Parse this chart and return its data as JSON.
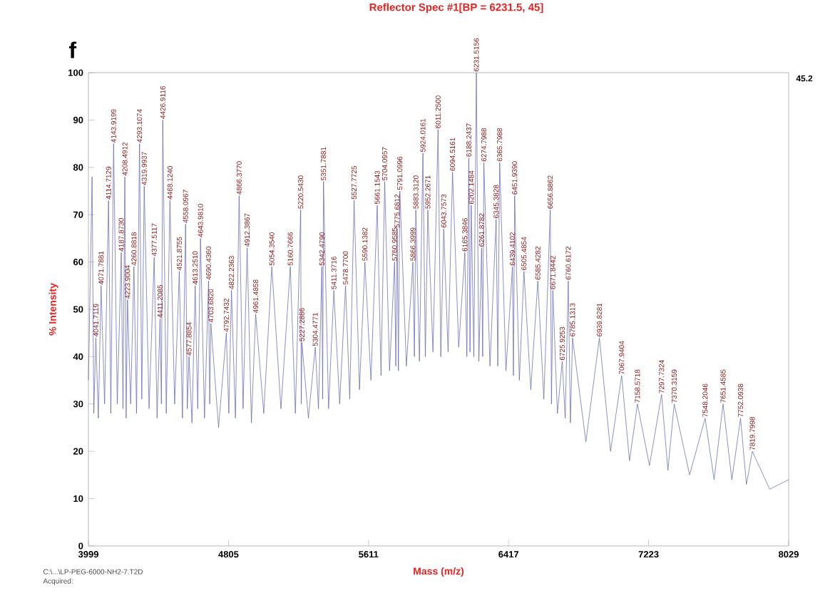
{
  "chart_data": {
    "type": "line",
    "title": "Reflector Spec #1[BP = 6231.5, 45]",
    "xlabel": "Mass (m/z)",
    "ylabel": "% Intensity",
    "color": "#5a5fb0",
    "xlim": [
      3999,
      8029
    ],
    "xticks": [
      3999,
      4805,
      5611,
      6417,
      7223,
      8029
    ],
    "ylim": [
      0,
      100
    ],
    "yticks": [
      0,
      10,
      20,
      30,
      40,
      50,
      60,
      70,
      80,
      90,
      100
    ],
    "x": [
      3999,
      4020,
      4030,
      4041.7,
      4056,
      4071.8,
      4092,
      4114.7,
      4128,
      4143.9,
      4165,
      4187.9,
      4198,
      4208.5,
      4216,
      4223.9,
      4242,
      4260.9,
      4276,
      4293.1,
      4306,
      4320.0,
      4348,
      4377.5,
      4394,
      4411.2,
      4419,
      4426.9,
      4447,
      4468.1,
      4495,
      4521.9,
      4540,
      4558.1,
      4568,
      4577.9,
      4595,
      4613.3,
      4628,
      4644.0,
      4667,
      4690.4,
      4697,
      4703.7,
      4748,
      4792.7,
      4807,
      4822.2,
      4845,
      4866.4,
      4889,
      4912.4,
      4937,
      4961.5,
      5008,
      5054.4,
      5107,
      5160.8,
      5190,
      5220.5,
      5224,
      5227.3,
      5265,
      5304.5,
      5323,
      5342.5,
      5347,
      5351.8,
      5381,
      5411.4,
      5445,
      5478.8,
      5503,
      5527.8,
      5559,
      5590.1,
      5625,
      5661.2,
      5683,
      5704.1,
      5732,
      5761.0,
      5768,
      5775.7,
      5783,
      5791.1,
      5829,
      5866.4,
      5875,
      5883.3,
      5904,
      5924.0,
      5938,
      5952.3,
      5982,
      6011.3,
      6027,
      6043.8,
      6069,
      6094.5,
      6130,
      6165.4,
      6177,
      6188.2,
      6195,
      6202.1,
      6217,
      6231.5,
      6246,
      6261.9,
      6268,
      6274.8,
      6310,
      6345.4,
      6355,
      6365.8,
      6402,
      6439.4,
      6445,
      6451.9,
      6479,
      6505.5,
      6545,
      6585.4,
      6620,
      6656.9,
      6664,
      6671.8,
      6698,
      6725.9,
      6743,
      6760.6,
      6773,
      6785.1,
      6862,
      6939.8,
      7004,
      7067.9,
      7113,
      7158.6,
      7228,
      7297.7,
      7334,
      7370.3,
      7459,
      7548.2,
      7600,
      7651.5,
      7702,
      7752.1,
      7786,
      7819.8,
      7920,
      8029
    ],
    "values": [
      35,
      78,
      28,
      44,
      27,
      55,
      30,
      73,
      28,
      85,
      30,
      62,
      29,
      78,
      27,
      52,
      30,
      59,
      28,
      85,
      31,
      76,
      29,
      61,
      27,
      48,
      30,
      90,
      28,
      73,
      30,
      58,
      27,
      68,
      29,
      40,
      26,
      55,
      29,
      65,
      27,
      56,
      30,
      47,
      25,
      45,
      28,
      54,
      27,
      74,
      29,
      63,
      26,
      49,
      28,
      59,
      29,
      59,
      28,
      71,
      30,
      43,
      27,
      42,
      29,
      59,
      31,
      77,
      29,
      54,
      30,
      55,
      31,
      73,
      33,
      60,
      35,
      72,
      36,
      77,
      37,
      60,
      38,
      67,
      37,
      75,
      38,
      60,
      40,
      71,
      39,
      83,
      40,
      71,
      41,
      88,
      40,
      67,
      41,
      79,
      42,
      62,
      40,
      82,
      41,
      72,
      40,
      100,
      39,
      63,
      40,
      81,
      38,
      69,
      38,
      81,
      37,
      59,
      36,
      74,
      35,
      58,
      33,
      56,
      31,
      71,
      30,
      54,
      28,
      39,
      27,
      56,
      26,
      44,
      22,
      44,
      20,
      36,
      18,
      30,
      17,
      32,
      16,
      30,
      15,
      27,
      14,
      30,
      14,
      27,
      13,
      20,
      12,
      14
    ],
    "annotations": [
      {
        "text": "4041.7119",
        "x": 4041.7119,
        "y": 44
      },
      {
        "text": "4071.7881",
        "x": 4071.7881,
        "y": 55
      },
      {
        "text": "4114.7129",
        "x": 4114.7129,
        "y": 73
      },
      {
        "text": "4143.9199",
        "x": 4143.9199,
        "y": 85
      },
      {
        "text": "4187.8730",
        "x": 4187.873,
        "y": 62
      },
      {
        "text": "4208.4912",
        "x": 4208.4912,
        "y": 78
      },
      {
        "text": "4223.9004",
        "x": 4223.9004,
        "y": 52
      },
      {
        "text": "4260.8818",
        "x": 4260.8818,
        "y": 59
      },
      {
        "text": "4293.1074",
        "x": 4293.1074,
        "y": 85
      },
      {
        "text": "4319.9937",
        "x": 4319.9937,
        "y": 76
      },
      {
        "text": "4377.5117",
        "x": 4377.5117,
        "y": 61
      },
      {
        "text": "4411.2085",
        "x": 4411.2085,
        "y": 48
      },
      {
        "text": "4426.9116",
        "x": 4426.9116,
        "y": 90
      },
      {
        "text": "4468.1240",
        "x": 4468.124,
        "y": 73
      },
      {
        "text": "4521.8755",
        "x": 4521.8755,
        "y": 58
      },
      {
        "text": "4558.0967",
        "x": 4558.0967,
        "y": 68
      },
      {
        "text": "4577.8854",
        "x": 4577.8854,
        "y": 40
      },
      {
        "text": "4613.2510",
        "x": 4613.251,
        "y": 55
      },
      {
        "text": "4643.9810",
        "x": 4643.981,
        "y": 65
      },
      {
        "text": "4690.4360",
        "x": 4690.436,
        "y": 56
      },
      {
        "text": "4703.6820",
        "x": 4703.682,
        "y": 47
      },
      {
        "text": "4792.7432",
        "x": 4792.7432,
        "y": 45
      },
      {
        "text": "4822.2363",
        "x": 4822.2363,
        "y": 54
      },
      {
        "text": "4866.3770",
        "x": 4866.377,
        "y": 74
      },
      {
        "text": "4912.3867",
        "x": 4912.3867,
        "y": 63
      },
      {
        "text": "4961.4858",
        "x": 4961.4858,
        "y": 49
      },
      {
        "text": "5054.3540",
        "x": 5054.354,
        "y": 59
      },
      {
        "text": "5160.7666",
        "x": 5160.7666,
        "y": 59
      },
      {
        "text": "5220.5430",
        "x": 5220.543,
        "y": 71
      },
      {
        "text": "5227.2886",
        "x": 5227.2886,
        "y": 43
      },
      {
        "text": "5304.4771",
        "x": 5304.4771,
        "y": 42
      },
      {
        "text": "5342.4790",
        "x": 5342.479,
        "y": 59
      },
      {
        "text": "5351.7881",
        "x": 5351.7881,
        "y": 77
      },
      {
        "text": "5411.3716",
        "x": 5411.3716,
        "y": 54
      },
      {
        "text": "5478.7700",
        "x": 5478.77,
        "y": 55
      },
      {
        "text": "5527.7725",
        "x": 5527.7725,
        "y": 73
      },
      {
        "text": "5590.1382",
        "x": 5590.1382,
        "y": 60
      },
      {
        "text": "5661.1543",
        "x": 5661.1543,
        "y": 72
      },
      {
        "text": "5704.0957",
        "x": 5704.0957,
        "y": 77
      },
      {
        "text": "5760.9585",
        "x": 5760.9585,
        "y": 60
      },
      {
        "text": "5775.6812",
        "x": 5775.6812,
        "y": 67
      },
      {
        "text": "5791.0996",
        "x": 5791.0996,
        "y": 75
      },
      {
        "text": "5866.3999",
        "x": 5866.3999,
        "y": 60
      },
      {
        "text": "5883.3120",
        "x": 5883.312,
        "y": 71
      },
      {
        "text": "5924.0161",
        "x": 5924.0161,
        "y": 83
      },
      {
        "text": "5952.2671",
        "x": 5952.2671,
        "y": 71
      },
      {
        "text": "6011.2500",
        "x": 6011.25,
        "y": 88
      },
      {
        "text": "6043.7573",
        "x": 6043.7573,
        "y": 67
      },
      {
        "text": "6094.5161",
        "x": 6094.5161,
        "y": 79
      },
      {
        "text": "6165.3846",
        "x": 6165.3846,
        "y": 62
      },
      {
        "text": "6188.2437",
        "x": 6188.2437,
        "y": 82
      },
      {
        "text": "6202.1484",
        "x": 6202.1484,
        "y": 72
      },
      {
        "text": "6231.5156",
        "x": 6231.5156,
        "y": 100
      },
      {
        "text": "6261.8782",
        "x": 6261.8782,
        "y": 63
      },
      {
        "text": "6274.7988",
        "x": 6274.7988,
        "y": 81
      },
      {
        "text": "6345.3828",
        "x": 6345.3828,
        "y": 69
      },
      {
        "text": "6365.7988",
        "x": 6365.7988,
        "y": 81
      },
      {
        "text": "6439.4102",
        "x": 6439.4102,
        "y": 59
      },
      {
        "text": "6451.9390",
        "x": 6451.939,
        "y": 74
      },
      {
        "text": "6505.4854",
        "x": 6505.4854,
        "y": 58
      },
      {
        "text": "6585.4282",
        "x": 6585.4282,
        "y": 56
      },
      {
        "text": "6656.8862",
        "x": 6656.8862,
        "y": 71
      },
      {
        "text": "6671.8442",
        "x": 6671.8442,
        "y": 54
      },
      {
        "text": "6725.9253",
        "x": 6725.9253,
        "y": 39
      },
      {
        "text": "6760.6172",
        "x": 6760.6172,
        "y": 56
      },
      {
        "text": "6785.1313",
        "x": 6785.1313,
        "y": 44
      },
      {
        "text": "6939.8281",
        "x": 6939.8281,
        "y": 44
      },
      {
        "text": "7067.9404",
        "x": 7067.9404,
        "y": 36
      },
      {
        "text": "7158.5718",
        "x": 7158.5718,
        "y": 30
      },
      {
        "text": "7297.7324",
        "x": 7297.7324,
        "y": 32
      },
      {
        "text": "7370.3159",
        "x": 7370.3159,
        "y": 30
      },
      {
        "text": "7548.2046",
        "x": 7548.2046,
        "y": 27
      },
      {
        "text": "7651.4585",
        "x": 7651.4585,
        "y": 30
      },
      {
        "text": "7752.0938",
        "x": 7752.0938,
        "y": 27
      },
      {
        "text": "7819.7998",
        "x": 7819.7998,
        "y": 20
      },
      "f",
      "45.2",
      "C:\\...\\LP-PEG-6000-NH2-7.T2D",
      "Acquired:"
    ]
  }
}
